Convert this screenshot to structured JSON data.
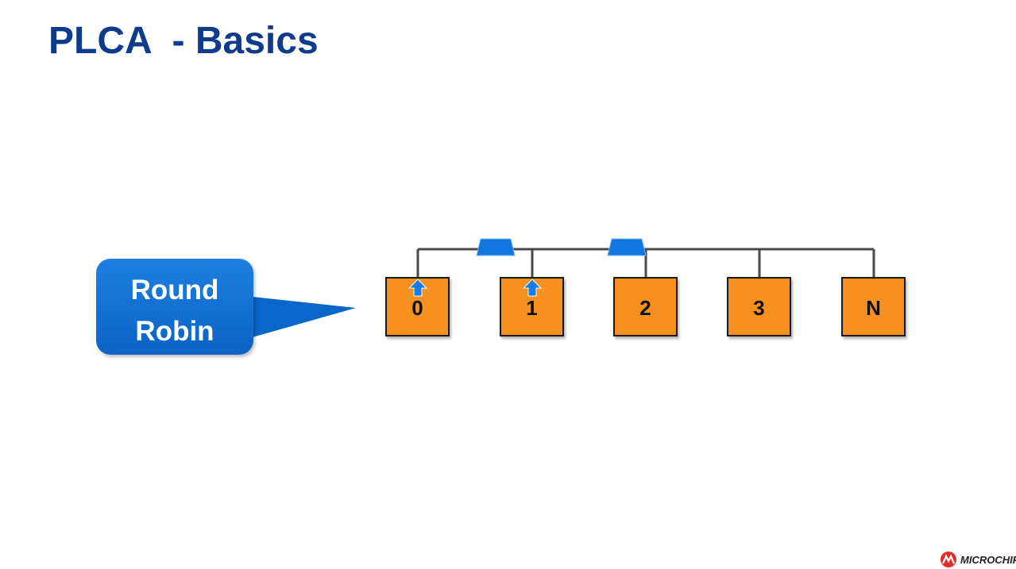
{
  "slide": {
    "title": "PLCA  - Basics"
  },
  "callout": {
    "line1": "Round",
    "line2": "Robin"
  },
  "nodes": [
    {
      "label": "0"
    },
    {
      "label": "1"
    },
    {
      "label": "2"
    },
    {
      "label": "3"
    },
    {
      "label": "N"
    }
  ],
  "colors": {
    "title": "#0f3b8c",
    "callout": "#0b6fd6",
    "node_fill": "#f7901e",
    "bus_line": "#4a4a4a",
    "packet": "#1177e0"
  },
  "logo": {
    "text": "MICROCHIP"
  }
}
